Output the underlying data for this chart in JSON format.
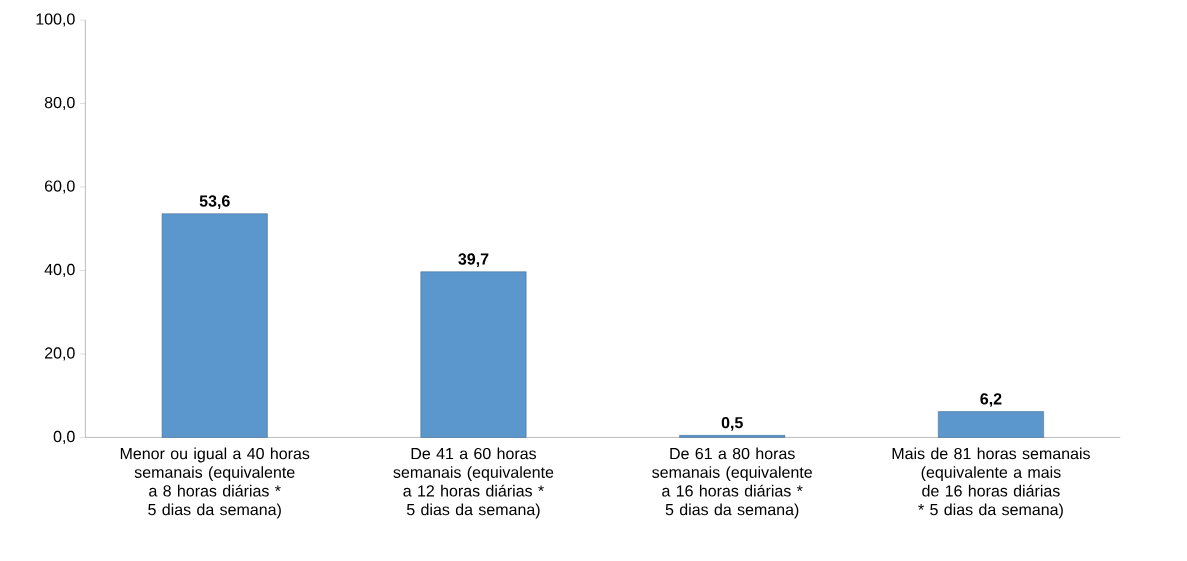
{
  "chart_data": {
    "type": "bar",
    "categories": [
      "Menor ou igual a 40 horas semanais (equivalente a 8 horas diárias * 5 dias da semana)",
      "De 41 a 60 horas semanais (equivalente a 12 horas diárias * 5 dias da semana)",
      "De 61 a 80 horas semanais (equivalente a 16 horas diárias * 5 dias da semana)",
      "Mais de 81 horas semanais (equivalente a mais de 16 horas diárias * 5 dias da semana)"
    ],
    "values": [
      53.6,
      39.7,
      0.5,
      6.2
    ],
    "value_labels": [
      "53,6",
      "39,7",
      "0,5",
      "6,2"
    ],
    "color": "#5b96cc",
    "ylim": [
      0,
      100
    ],
    "yticks": [
      {
        "value": 0,
        "label": "0,0"
      },
      {
        "value": 20,
        "label": "20,0"
      },
      {
        "value": 40,
        "label": "40,0"
      },
      {
        "value": 60,
        "label": "60,0"
      },
      {
        "value": 80,
        "label": "80,0"
      },
      {
        "value": 100,
        "label": "100,0"
      }
    ],
    "grid": false
  }
}
